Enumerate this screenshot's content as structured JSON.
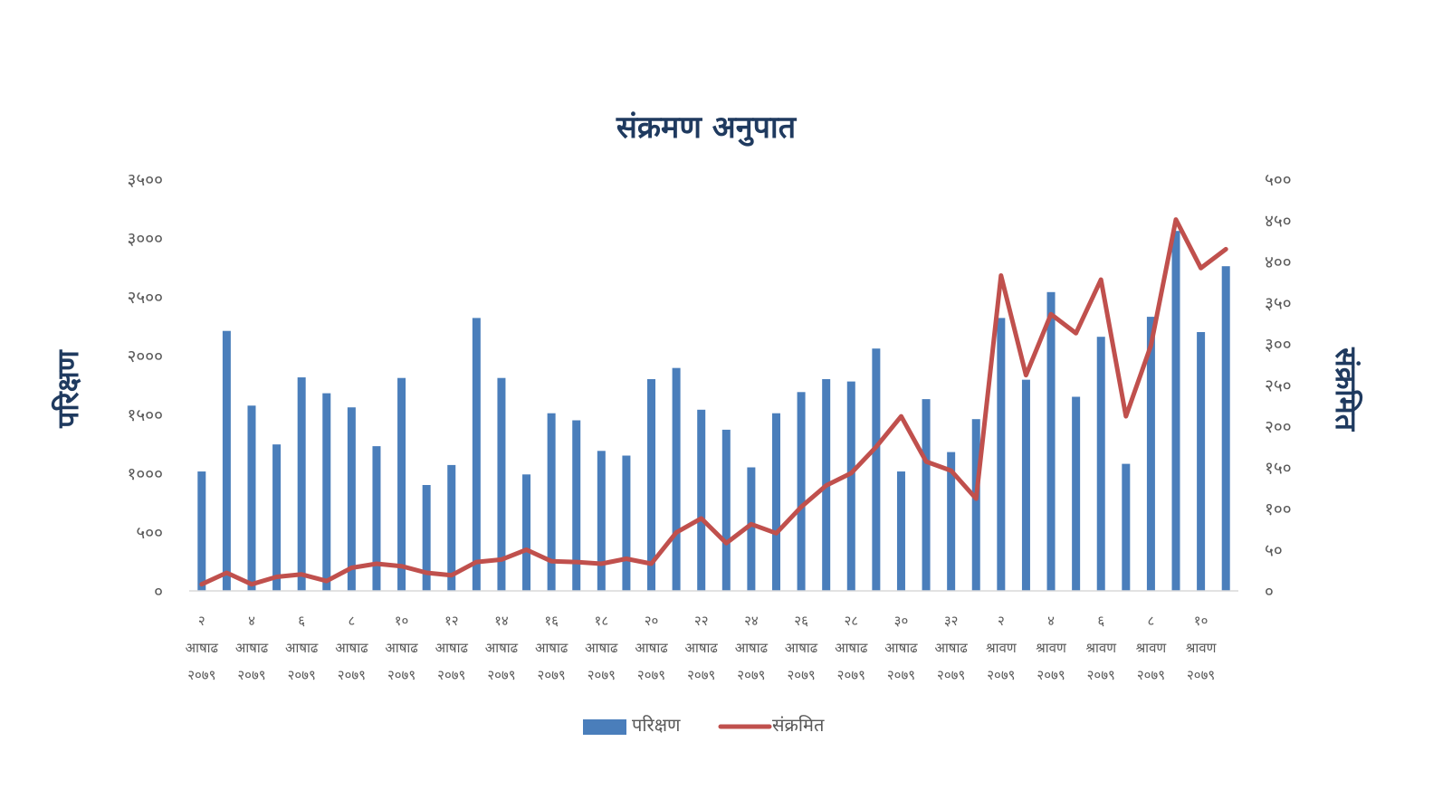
{
  "chart_data": {
    "type": "bar",
    "title": "संक्रमण अनुपात",
    "ylabel": "परिक्षण",
    "y2label": "संक्रमित",
    "ylim": [
      0,
      3500
    ],
    "y2lim": [
      0,
      500
    ],
    "yticks": [
      "०",
      "५००",
      "१०००",
      "१५००",
      "२०००",
      "२५००",
      "३०००",
      "३५००"
    ],
    "y2ticks": [
      "०",
      "५०",
      "१००",
      "१५०",
      "२००",
      "२५०",
      "३००",
      "३५०",
      "४००",
      "४५०",
      "५००"
    ],
    "grid": false,
    "legend_position": "bottom",
    "x_tick_labels": [
      [
        "२",
        "आषाढ",
        "२०७९"
      ],
      [
        "४",
        "आषाढ",
        "२०७९"
      ],
      [
        "६",
        "आषाढ",
        "२०७९"
      ],
      [
        "८",
        "आषाढ",
        "२०७९"
      ],
      [
        "१०",
        "आषाढ",
        "२०७९"
      ],
      [
        "१२",
        "आषाढ",
        "२०७९"
      ],
      [
        "१४",
        "आषाढ",
        "२०७९"
      ],
      [
        "१६",
        "आषाढ",
        "२०७९"
      ],
      [
        "१८",
        "आषाढ",
        "२०७९"
      ],
      [
        "२०",
        "आषाढ",
        "२०७९"
      ],
      [
        "२२",
        "आषाढ",
        "२०७९"
      ],
      [
        "२४",
        "आषाढ",
        "२०७९"
      ],
      [
        "२६",
        "आषाढ",
        "२०७९"
      ],
      [
        "२८",
        "आषाढ",
        "२०७९"
      ],
      [
        "३०",
        "आषाढ",
        "२०७९"
      ],
      [
        "३२",
        "आषाढ",
        "२०७९"
      ],
      [
        "२",
        "श्रावण",
        "२०७९"
      ],
      [
        "४",
        "श्रावण",
        "२०७९"
      ],
      [
        "६",
        "श्रावण",
        "२०७९"
      ],
      [
        "८",
        "श्रावण",
        "२०७९"
      ],
      [
        "१०",
        "श्रावण",
        "२०७९"
      ]
    ],
    "series": [
      {
        "name": "परिक्षण",
        "kind": "bar",
        "axis": "left",
        "color": "#4a7ebb",
        "values": [
          1015,
          2210,
          1575,
          1245,
          1815,
          1680,
          1560,
          1230,
          1810,
          900,
          1070,
          2320,
          1810,
          990,
          1510,
          1450,
          1190,
          1150,
          1800,
          1895,
          1540,
          1370,
          1050,
          1510,
          1690,
          1800,
          1780,
          2060,
          1015,
          1630,
          1180,
          1460,
          2320,
          1795,
          2540,
          1650,
          2160,
          1080,
          2330,
          3060,
          2200,
          2760
        ]
      },
      {
        "name": "संक्रमित",
        "kind": "line",
        "axis": "right",
        "color": "#c0504d",
        "values": [
          8,
          22,
          8,
          17,
          20,
          12,
          28,
          33,
          30,
          22,
          19,
          35,
          38,
          50,
          36,
          35,
          33,
          39,
          33,
          71,
          88,
          58,
          81,
          70,
          102,
          128,
          143,
          175,
          212,
          157,
          146,
          112,
          383,
          262,
          336,
          313,
          378,
          212,
          298,
          451,
          392,
          415
        ]
      }
    ]
  }
}
